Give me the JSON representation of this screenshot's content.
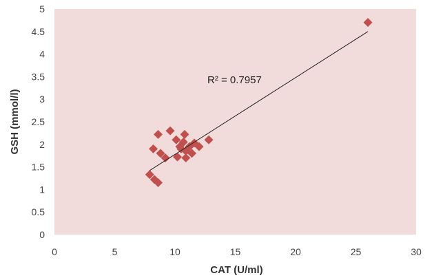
{
  "chart_data": {
    "type": "scatter",
    "title": "",
    "xlabel": "CAT (U/ml)",
    "ylabel": "GSH (mmol/l)",
    "xlim": [
      0,
      30
    ],
    "ylim": [
      0,
      5
    ],
    "x_ticks": [
      "0",
      "5",
      "10",
      "15",
      "20",
      "25",
      "30"
    ],
    "y_ticks": [
      "0",
      "0.5",
      "1",
      "1.5",
      "2",
      "2.5",
      "3",
      "3.5",
      "4",
      "4.5",
      "5"
    ],
    "grid": false,
    "legend": "none",
    "series": [
      {
        "marker": "diamond",
        "color": "#c0504d",
        "points": [
          [
            8.6,
            2.22
          ],
          [
            9.6,
            2.3
          ],
          [
            10.8,
            2.22
          ],
          [
            8.2,
            1.9
          ],
          [
            8.8,
            1.8
          ],
          [
            9.2,
            1.7
          ],
          [
            10.1,
            2.1
          ],
          [
            10.4,
            1.95
          ],
          [
            10.7,
            2.05
          ],
          [
            10.9,
            1.85
          ],
          [
            11.2,
            1.95
          ],
          [
            11.6,
            2.03
          ],
          [
            10.2,
            1.72
          ],
          [
            10.9,
            1.7
          ],
          [
            11.4,
            1.8
          ],
          [
            12.0,
            1.95
          ],
          [
            12.8,
            2.1
          ],
          [
            10.5,
            1.9
          ],
          [
            7.9,
            1.33
          ],
          [
            8.3,
            1.22
          ],
          [
            8.6,
            1.15
          ],
          [
            26.0,
            4.7
          ]
        ]
      }
    ],
    "trendline": {
      "type": "linear",
      "x": [
        7.9,
        26.0
      ],
      "y": [
        1.42,
        4.5
      ],
      "color": "#222222"
    },
    "annotation": "R² = 0.7957",
    "plot_background": "#f2dcdb"
  }
}
